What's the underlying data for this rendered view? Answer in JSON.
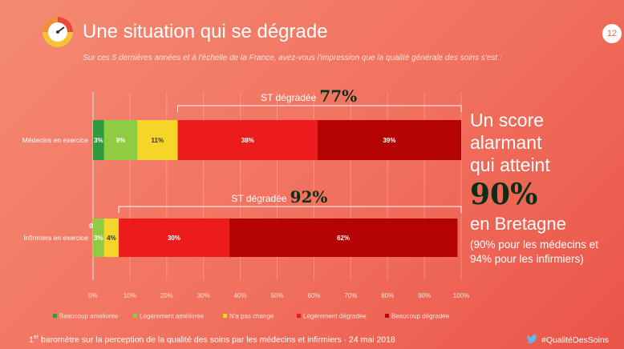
{
  "header": {
    "title": "Une situation qui se dégrade",
    "page_number": "12",
    "subtitle": "Sur ces 5 dernières années et à l'échelle de la France, avez-vous l'impression que la qualité générale des soins s'est :"
  },
  "chart_data": {
    "type": "bar",
    "orientation": "horizontal",
    "stacked": true,
    "categories": [
      "Médecins en exercice",
      "Infirmiers en exercice"
    ],
    "series": [
      {
        "name": "Beaucoup améliorée",
        "color": "#2e9b3f",
        "values": [
          3,
          0
        ],
        "labels": [
          "3%",
          "0%"
        ]
      },
      {
        "name": "Légèrement améliorée",
        "color": "#8fcc44",
        "values": [
          9,
          3
        ],
        "labels": [
          "9%",
          "3%"
        ]
      },
      {
        "name": "N'a pas changé",
        "color": "#f6d52a",
        "values": [
          11,
          4
        ],
        "labels": [
          "11%",
          "4%"
        ]
      },
      {
        "name": "Légèrement dégradée",
        "color": "#ec1c1c",
        "values": [
          38,
          30
        ],
        "labels": [
          "38%",
          "30%"
        ]
      },
      {
        "name": "Beaucoup dégradée",
        "color": "#b30303",
        "values": [
          39,
          62
        ],
        "labels": [
          "39%",
          "62%"
        ]
      }
    ],
    "xlim": [
      0,
      100
    ],
    "xticks": [
      "0%",
      "10%",
      "20%",
      "30%",
      "40%",
      "50%",
      "60%",
      "70%",
      "80%",
      "90%",
      "100%"
    ],
    "legend_position": "bottom",
    "annotations": [
      {
        "category": "Médecins en exercice",
        "label": "ST dégradée",
        "value": "77%"
      },
      {
        "category": "Infirmiers en exercice",
        "label": "ST dégradée",
        "value": "92%"
      }
    ]
  },
  "callout": {
    "line1": "Un score",
    "line2": "alarmant",
    "line3": "qui atteint",
    "value": "90%",
    "region": "en Bretagne",
    "detail1": "(90% pour les médecins et",
    "detail2": "94% pour les infirmiers)"
  },
  "footer": {
    "ordinal": "1",
    "ordinal_suffix": "er",
    "text": " baromètre sur la perception de la qualité des soins par les médecins et infirmiers · 24 mai 2018",
    "hashtag": "#QualitéDesSoins"
  }
}
